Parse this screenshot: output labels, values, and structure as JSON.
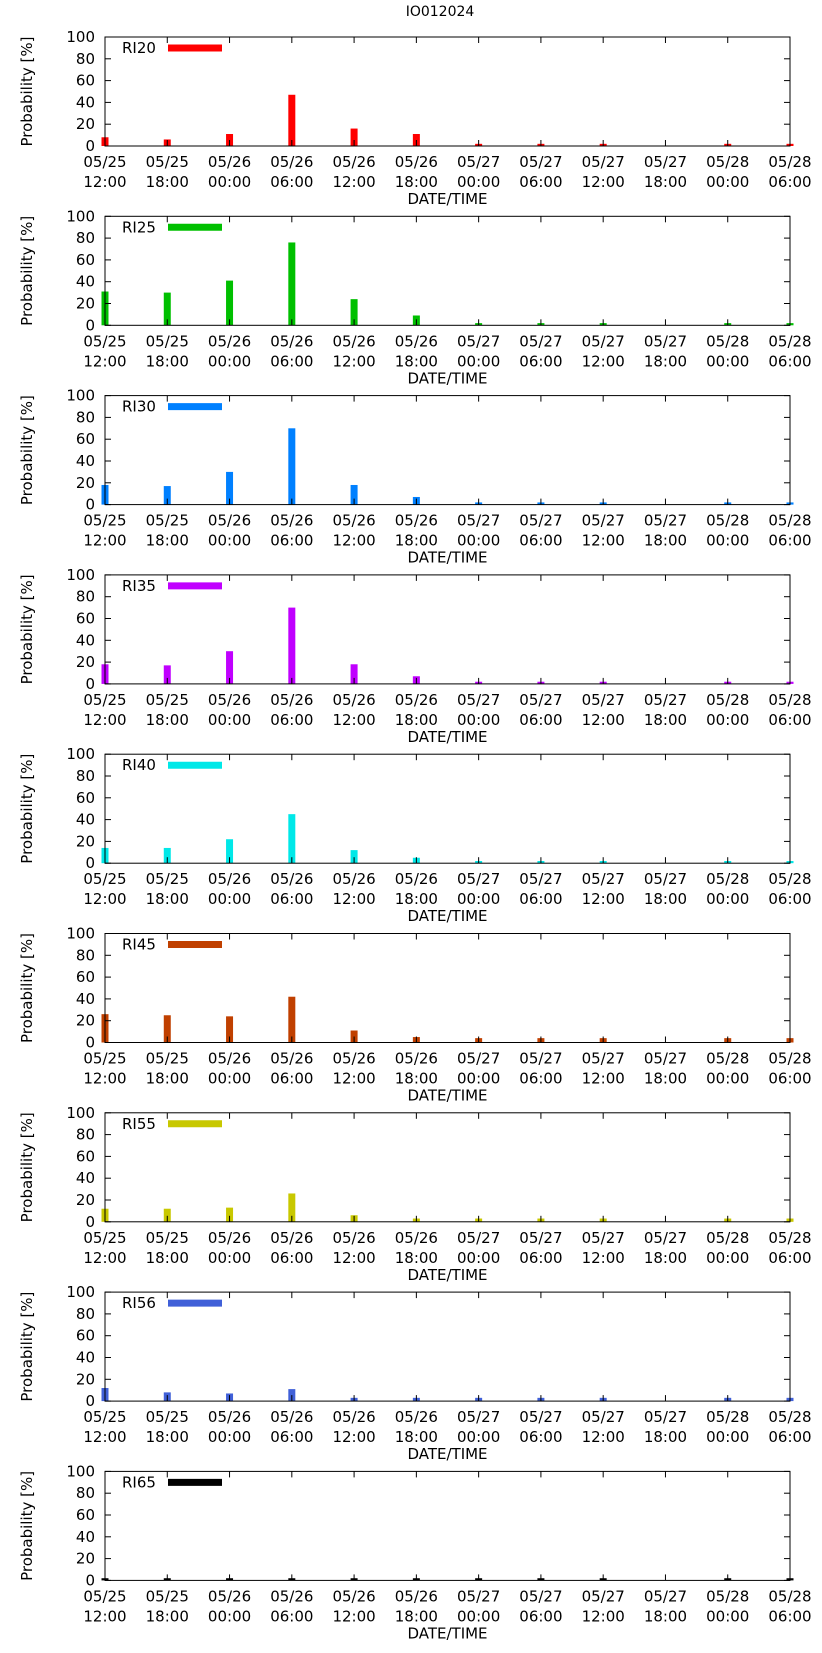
{
  "figure_title": "IO012024",
  "chart_data": [
    {
      "type": "bar",
      "title": "IO012024",
      "legend": "RI20",
      "color": "#ff0000",
      "ylabel": "Probability [%]",
      "xlabel": "DATE/TIME",
      "ylim": [
        0,
        100
      ],
      "yticks": [
        "0",
        "20",
        "40",
        "60",
        "80",
        "100"
      ],
      "x_tick_labels": [
        [
          "05/25",
          "12:00"
        ],
        [
          "05/25",
          "18:00"
        ],
        [
          "05/26",
          "00:00"
        ],
        [
          "05/26",
          "06:00"
        ],
        [
          "05/26",
          "12:00"
        ],
        [
          "05/26",
          "18:00"
        ],
        [
          "05/27",
          "00:00"
        ],
        [
          "05/27",
          "06:00"
        ],
        [
          "05/27",
          "12:00"
        ],
        [
          "05/27",
          "18:00"
        ],
        [
          "05/28",
          "00:00"
        ],
        [
          "05/28",
          "06:00"
        ]
      ],
      "x": [
        "05/25 12:00",
        "05/25 18:00",
        "05/26 00:00",
        "05/26 06:00",
        "05/26 12:00",
        "05/26 18:00",
        "05/27 00:00",
        "05/27 06:00",
        "05/27 12:00",
        "05/28 00:00",
        "05/28 06:00"
      ],
      "values": [
        8,
        6,
        11,
        47,
        16,
        11,
        2,
        2,
        2,
        2,
        2
      ]
    },
    {
      "type": "bar",
      "title": "IO012024",
      "legend": "RI25",
      "color": "#00c000",
      "ylabel": "Probability [%]",
      "xlabel": "DATE/TIME",
      "ylim": [
        0,
        100
      ],
      "yticks": [
        "0",
        "20",
        "40",
        "60",
        "80",
        "100"
      ],
      "x_tick_labels": [
        [
          "05/25",
          "12:00"
        ],
        [
          "05/25",
          "18:00"
        ],
        [
          "05/26",
          "00:00"
        ],
        [
          "05/26",
          "06:00"
        ],
        [
          "05/26",
          "12:00"
        ],
        [
          "05/26",
          "18:00"
        ],
        [
          "05/27",
          "00:00"
        ],
        [
          "05/27",
          "06:00"
        ],
        [
          "05/27",
          "12:00"
        ],
        [
          "05/27",
          "18:00"
        ],
        [
          "05/28",
          "00:00"
        ],
        [
          "05/28",
          "06:00"
        ]
      ],
      "x": [
        "05/25 12:00",
        "05/25 18:00",
        "05/26 00:00",
        "05/26 06:00",
        "05/26 12:00",
        "05/26 18:00",
        "05/27 00:00",
        "05/27 06:00",
        "05/27 12:00",
        "05/28 00:00",
        "05/28 06:00"
      ],
      "values": [
        31,
        30,
        41,
        76,
        24,
        9,
        2,
        2,
        2,
        2,
        2
      ]
    },
    {
      "type": "bar",
      "title": "IO012024",
      "legend": "RI30",
      "color": "#0080ff",
      "ylabel": "Probability [%]",
      "xlabel": "DATE/TIME",
      "ylim": [
        0,
        100
      ],
      "yticks": [
        "0",
        "20",
        "40",
        "60",
        "80",
        "100"
      ],
      "x_tick_labels": [
        [
          "05/25",
          "12:00"
        ],
        [
          "05/25",
          "18:00"
        ],
        [
          "05/26",
          "00:00"
        ],
        [
          "05/26",
          "06:00"
        ],
        [
          "05/26",
          "12:00"
        ],
        [
          "05/26",
          "18:00"
        ],
        [
          "05/27",
          "00:00"
        ],
        [
          "05/27",
          "06:00"
        ],
        [
          "05/27",
          "12:00"
        ],
        [
          "05/27",
          "18:00"
        ],
        [
          "05/28",
          "00:00"
        ],
        [
          "05/28",
          "06:00"
        ]
      ],
      "x": [
        "05/25 12:00",
        "05/25 18:00",
        "05/26 00:00",
        "05/26 06:00",
        "05/26 12:00",
        "05/26 18:00",
        "05/27 00:00",
        "05/27 06:00",
        "05/27 12:00",
        "05/28 00:00",
        "05/28 06:00"
      ],
      "values": [
        18,
        17,
        30,
        70,
        18,
        7,
        2,
        2,
        2,
        2,
        2
      ]
    },
    {
      "type": "bar",
      "title": "IO012024",
      "legend": "RI35",
      "color": "#c000ff",
      "ylabel": "Probability [%]",
      "xlabel": "DATE/TIME",
      "ylim": [
        0,
        100
      ],
      "yticks": [
        "0",
        "20",
        "40",
        "60",
        "80",
        "100"
      ],
      "x_tick_labels": [
        [
          "05/25",
          "12:00"
        ],
        [
          "05/25",
          "18:00"
        ],
        [
          "05/26",
          "00:00"
        ],
        [
          "05/26",
          "06:00"
        ],
        [
          "05/26",
          "12:00"
        ],
        [
          "05/26",
          "18:00"
        ],
        [
          "05/27",
          "00:00"
        ],
        [
          "05/27",
          "06:00"
        ],
        [
          "05/27",
          "12:00"
        ],
        [
          "05/27",
          "18:00"
        ],
        [
          "05/28",
          "00:00"
        ],
        [
          "05/28",
          "06:00"
        ]
      ],
      "x": [
        "05/25 12:00",
        "05/25 18:00",
        "05/26 00:00",
        "05/26 06:00",
        "05/26 12:00",
        "05/26 18:00",
        "05/27 00:00",
        "05/27 06:00",
        "05/27 12:00",
        "05/28 00:00",
        "05/28 06:00"
      ],
      "values": [
        18,
        17,
        30,
        70,
        18,
        7,
        2,
        2,
        2,
        2,
        2
      ]
    },
    {
      "type": "bar",
      "title": "IO012024",
      "legend": "RI40",
      "color": "#00e8e8",
      "ylabel": "Probability [%]",
      "xlabel": "DATE/TIME",
      "ylim": [
        0,
        100
      ],
      "yticks": [
        "0",
        "20",
        "40",
        "60",
        "80",
        "100"
      ],
      "x_tick_labels": [
        [
          "05/25",
          "12:00"
        ],
        [
          "05/25",
          "18:00"
        ],
        [
          "05/26",
          "00:00"
        ],
        [
          "05/26",
          "06:00"
        ],
        [
          "05/26",
          "12:00"
        ],
        [
          "05/26",
          "18:00"
        ],
        [
          "05/27",
          "00:00"
        ],
        [
          "05/27",
          "06:00"
        ],
        [
          "05/27",
          "12:00"
        ],
        [
          "05/27",
          "18:00"
        ],
        [
          "05/28",
          "00:00"
        ],
        [
          "05/28",
          "06:00"
        ]
      ],
      "x": [
        "05/25 12:00",
        "05/25 18:00",
        "05/26 00:00",
        "05/26 06:00",
        "05/26 12:00",
        "05/26 18:00",
        "05/27 00:00",
        "05/27 06:00",
        "05/27 12:00",
        "05/28 00:00",
        "05/28 06:00"
      ],
      "values": [
        14,
        14,
        22,
        45,
        12,
        5,
        2,
        2,
        2,
        2,
        2
      ]
    },
    {
      "type": "bar",
      "title": "IO012024",
      "legend": "RI45",
      "color": "#c04000",
      "ylabel": "Probability [%]",
      "xlabel": "DATE/TIME",
      "ylim": [
        0,
        100
      ],
      "yticks": [
        "0",
        "20",
        "40",
        "60",
        "80",
        "100"
      ],
      "x_tick_labels": [
        [
          "05/25",
          "12:00"
        ],
        [
          "05/25",
          "18:00"
        ],
        [
          "05/26",
          "00:00"
        ],
        [
          "05/26",
          "06:00"
        ],
        [
          "05/26",
          "12:00"
        ],
        [
          "05/26",
          "18:00"
        ],
        [
          "05/27",
          "00:00"
        ],
        [
          "05/27",
          "06:00"
        ],
        [
          "05/27",
          "12:00"
        ],
        [
          "05/27",
          "18:00"
        ],
        [
          "05/28",
          "00:00"
        ],
        [
          "05/28",
          "06:00"
        ]
      ],
      "x": [
        "05/25 12:00",
        "05/25 18:00",
        "05/26 00:00",
        "05/26 06:00",
        "05/26 12:00",
        "05/26 18:00",
        "05/27 00:00",
        "05/27 06:00",
        "05/27 12:00",
        "05/28 00:00",
        "05/28 06:00"
      ],
      "values": [
        26,
        25,
        24,
        42,
        11,
        5,
        4,
        4,
        4,
        4,
        4
      ]
    },
    {
      "type": "bar",
      "title": "IO012024",
      "legend": "RI55",
      "color": "#c8c800",
      "ylabel": "Probability [%]",
      "xlabel": "DATE/TIME",
      "ylim": [
        0,
        100
      ],
      "yticks": [
        "0",
        "20",
        "40",
        "60",
        "80",
        "100"
      ],
      "x_tick_labels": [
        [
          "05/25",
          "12:00"
        ],
        [
          "05/25",
          "18:00"
        ],
        [
          "05/26",
          "00:00"
        ],
        [
          "05/26",
          "06:00"
        ],
        [
          "05/26",
          "12:00"
        ],
        [
          "05/26",
          "18:00"
        ],
        [
          "05/27",
          "00:00"
        ],
        [
          "05/27",
          "06:00"
        ],
        [
          "05/27",
          "12:00"
        ],
        [
          "05/27",
          "18:00"
        ],
        [
          "05/28",
          "00:00"
        ],
        [
          "05/28",
          "06:00"
        ]
      ],
      "x": [
        "05/25 12:00",
        "05/25 18:00",
        "05/26 00:00",
        "05/26 06:00",
        "05/26 12:00",
        "05/26 18:00",
        "05/27 00:00",
        "05/27 06:00",
        "05/27 12:00",
        "05/28 00:00",
        "05/28 06:00"
      ],
      "values": [
        12,
        12,
        13,
        26,
        6,
        3,
        3,
        3,
        3,
        3,
        3
      ]
    },
    {
      "type": "bar",
      "title": "IO012024",
      "legend": "RI56",
      "color": "#4060d8",
      "ylabel": "Probability [%]",
      "xlabel": "DATE/TIME",
      "ylim": [
        0,
        100
      ],
      "yticks": [
        "0",
        "20",
        "40",
        "60",
        "80",
        "100"
      ],
      "x_tick_labels": [
        [
          "05/25",
          "12:00"
        ],
        [
          "05/25",
          "18:00"
        ],
        [
          "05/26",
          "00:00"
        ],
        [
          "05/26",
          "06:00"
        ],
        [
          "05/26",
          "12:00"
        ],
        [
          "05/26",
          "18:00"
        ],
        [
          "05/27",
          "00:00"
        ],
        [
          "05/27",
          "06:00"
        ],
        [
          "05/27",
          "12:00"
        ],
        [
          "05/27",
          "18:00"
        ],
        [
          "05/28",
          "00:00"
        ],
        [
          "05/28",
          "06:00"
        ]
      ],
      "x": [
        "05/25 12:00",
        "05/25 18:00",
        "05/26 00:00",
        "05/26 06:00",
        "05/26 12:00",
        "05/26 18:00",
        "05/27 00:00",
        "05/27 06:00",
        "05/27 12:00",
        "05/28 00:00",
        "05/28 06:00"
      ],
      "values": [
        12,
        8,
        7,
        11,
        3,
        3,
        3,
        3,
        3,
        3,
        3
      ]
    },
    {
      "type": "bar",
      "title": "IO012024",
      "legend": "RI65",
      "color": "#000000",
      "ylabel": "Probability [%]",
      "xlabel": "DATE/TIME",
      "ylim": [
        0,
        100
      ],
      "yticks": [
        "0",
        "20",
        "40",
        "60",
        "80",
        "100"
      ],
      "x_tick_labels": [
        [
          "05/25",
          "12:00"
        ],
        [
          "05/25",
          "18:00"
        ],
        [
          "05/26",
          "00:00"
        ],
        [
          "05/26",
          "06:00"
        ],
        [
          "05/26",
          "12:00"
        ],
        [
          "05/26",
          "18:00"
        ],
        [
          "05/27",
          "00:00"
        ],
        [
          "05/27",
          "06:00"
        ],
        [
          "05/27",
          "12:00"
        ],
        [
          "05/27",
          "18:00"
        ],
        [
          "05/28",
          "00:00"
        ],
        [
          "05/28",
          "06:00"
        ]
      ],
      "x": [
        "05/25 12:00",
        "05/25 18:00",
        "05/26 00:00",
        "05/26 06:00",
        "05/26 12:00",
        "05/26 18:00",
        "05/27 00:00",
        "05/27 06:00",
        "05/27 12:00",
        "05/28 00:00",
        "05/28 06:00"
      ],
      "values": [
        2,
        2,
        2,
        2,
        2,
        2,
        2,
        2,
        2,
        2,
        2
      ]
    }
  ]
}
